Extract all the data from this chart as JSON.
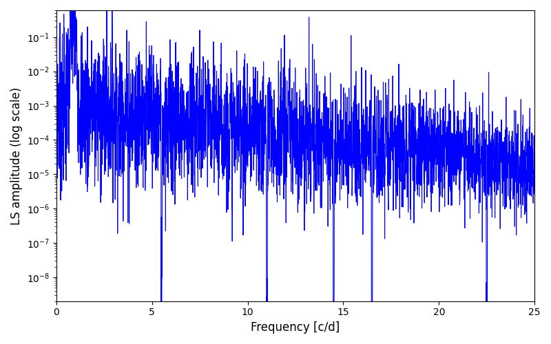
{
  "xlabel": "Frequency [c/d]",
  "ylabel": "LS amplitude (log scale)",
  "line_color": "#0000FF",
  "line_width": 0.8,
  "xmin": 0,
  "xmax": 25,
  "ymin": 2e-09,
  "ymax": 0.6,
  "xticks": [
    0,
    5,
    10,
    15,
    20,
    25
  ],
  "background_color": "#ffffff",
  "seed": 7,
  "n_points": 3000,
  "figsize": [
    8.0,
    5.0
  ],
  "dpi": 100
}
